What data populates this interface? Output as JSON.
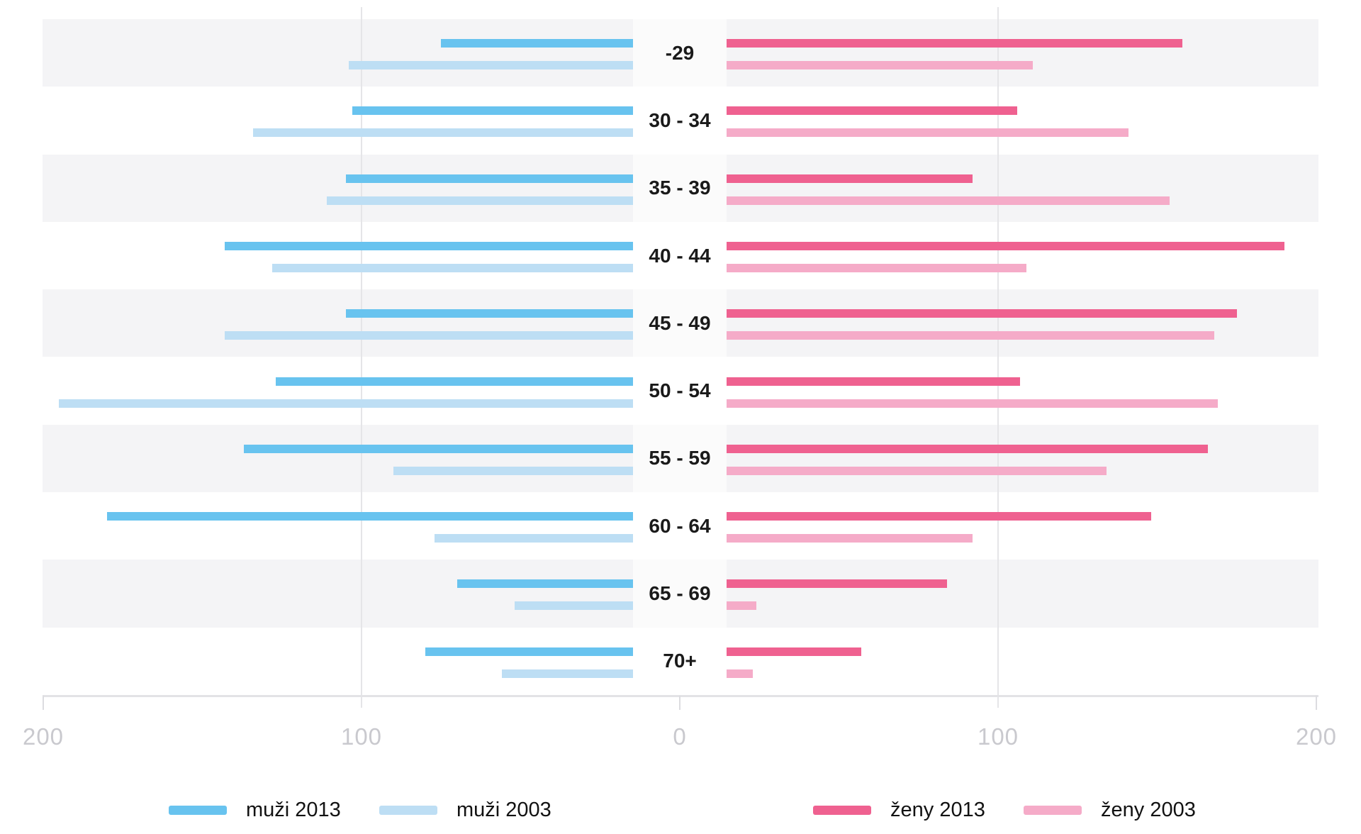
{
  "chart_data": {
    "type": "bar",
    "variant": "diverging-population-pyramid",
    "categories": [
      "-29",
      "30 - 34",
      "35 - 39",
      "40 - 44",
      "45 - 49",
      "50 - 54",
      "55 - 59",
      "60 - 64",
      "65 - 69",
      "70+"
    ],
    "series": [
      {
        "name": "muži 2013",
        "side": "left",
        "color": "#68c3ef",
        "values": [
          75,
          103,
          105,
          143,
          105,
          127,
          137,
          180,
          70,
          80
        ]
      },
      {
        "name": "muži 2003",
        "side": "left",
        "color": "#bddef4",
        "values": [
          104,
          134,
          111,
          128,
          143,
          195,
          90,
          77,
          52,
          56
        ]
      },
      {
        "name": "ženy 2013",
        "side": "right",
        "color": "#ef6190",
        "values": [
          158,
          106,
          92,
          190,
          175,
          107,
          166,
          148,
          84,
          57
        ]
      },
      {
        "name": "ženy 2003",
        "side": "right",
        "color": "#f5abc8",
        "values": [
          111,
          141,
          154,
          109,
          168,
          169,
          134,
          92,
          24,
          23
        ]
      }
    ],
    "axis": {
      "tick_labels": [
        "200",
        "100",
        "0",
        "100",
        "200"
      ],
      "tick_values": [
        -200,
        -100,
        0,
        100,
        200
      ],
      "gridlines_at": [
        -100,
        100
      ],
      "max_abs": 200
    },
    "legend": [
      {
        "label": "muži 2013",
        "color": "#68c3ef"
      },
      {
        "label": "muži 2003",
        "color": "#bddef4"
      },
      {
        "label": "ženy 2013",
        "color": "#ef6190"
      },
      {
        "label": "ženy 2003",
        "color": "#f5abc8"
      }
    ],
    "styles": {
      "row_band_color": "#f4f4f6",
      "center_stripe_color": "rgba(255,255,255,0.6)",
      "gridline_color": "#e5e5e8",
      "axis_line_color": "#e3e3e6",
      "tick_color": "#dcdce0",
      "tick_label_color": "#c9c9ce",
      "age_label_color": "#1a1a1a",
      "legend_text_color": "#121212",
      "background": "#ffffff"
    },
    "layout_hints": {
      "zero_center_gap_units": 15,
      "striped_rows": "odd rows shaded"
    }
  }
}
